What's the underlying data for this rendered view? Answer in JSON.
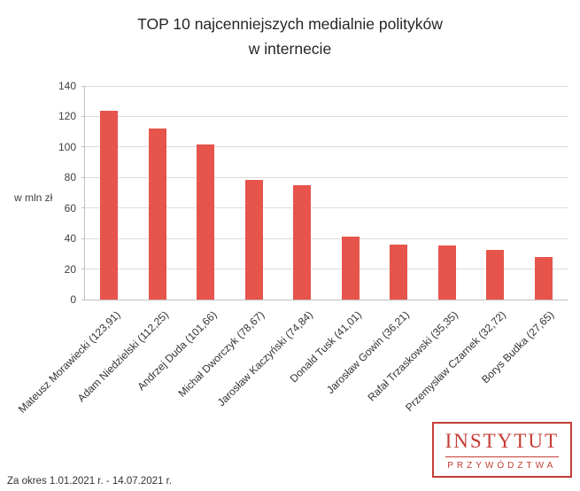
{
  "title_line1": "TOP 10 najcenniejszych medialnie polityków",
  "title_line2": "w internecie",
  "chart_data": {
    "type": "bar",
    "title": "TOP 10 najcenniejszych medialnie polityków w internecie",
    "categories": [
      "Mateusz Morawiecki (123,91)",
      "Adam Niedzielski (112,25)",
      "Andrzej Duda (101,66)",
      "Michał Dworczyk (78,67)",
      "Jarosław Kaczyński (74,84)",
      "Donald Tusk (41,01)",
      "Jarosław Gowin (36,21)",
      "Rafał Trzaskowski (35,35)",
      "Przemysław Czarnek (32,72)",
      "Borys Budka (27,65)"
    ],
    "values": [
      123.91,
      112.25,
      101.66,
      78.67,
      74.84,
      41.01,
      36.21,
      35.35,
      32.72,
      27.65
    ],
    "xlabel": "",
    "ylabel": "w mln zł",
    "ylim": [
      0,
      140
    ],
    "ytick_step": 20,
    "yticks": [
      0,
      20,
      40,
      60,
      80,
      100,
      120,
      140
    ],
    "grid": true,
    "legend": false,
    "bar_color": "#e6544b",
    "label_rotation_deg": -45
  },
  "footer": {
    "period": "Za okres 1.01.2021 r. - 14.07.2021 r."
  },
  "logo": {
    "line1": "INSTYTUT",
    "line2": "PRZYWÓDZTWA",
    "color": "#c43d35"
  }
}
